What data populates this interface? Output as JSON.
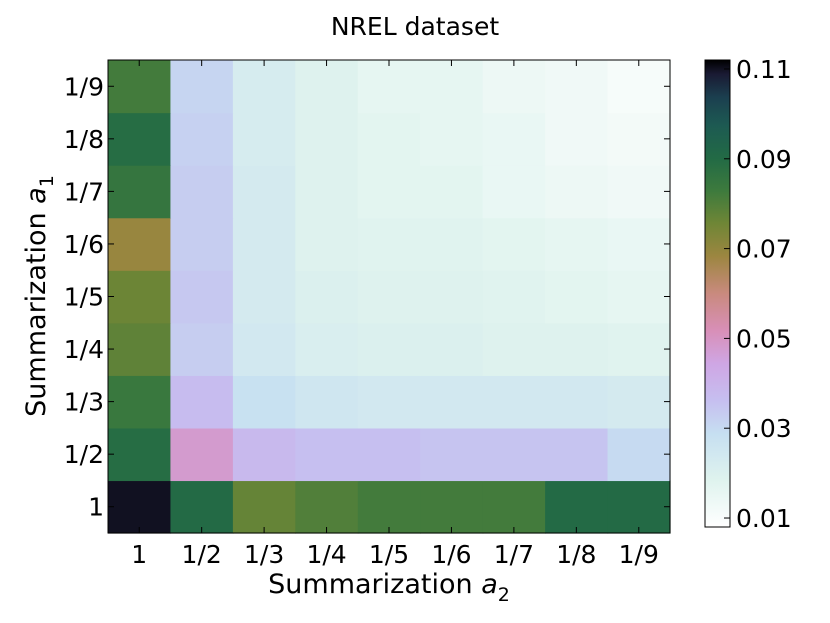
{
  "chart_data": {
    "type": "heatmap",
    "title": "NREL dataset",
    "xlabel": {
      "text": "Summarization ",
      "var": "a",
      "sub": "2"
    },
    "ylabel": {
      "text": "Summarization ",
      "var": "a",
      "sub": "1"
    },
    "x_categories": [
      "1",
      "1/2",
      "1/3",
      "1/4",
      "1/5",
      "1/6",
      "1/7",
      "1/8",
      "1/9"
    ],
    "y_categories": [
      "1",
      "1/2",
      "1/3",
      "1/4",
      "1/5",
      "1/6",
      "1/7",
      "1/8",
      "1/9"
    ],
    "values": [
      [
        0.11,
        0.09,
        0.077,
        0.08,
        0.082,
        0.082,
        0.082,
        0.09,
        0.09
      ],
      [
        0.089,
        0.048,
        0.038,
        0.036,
        0.036,
        0.035,
        0.035,
        0.035,
        0.03
      ],
      [
        0.084,
        0.037,
        0.028,
        0.025,
        0.024,
        0.024,
        0.024,
        0.024,
        0.023
      ],
      [
        0.078,
        0.033,
        0.024,
        0.021,
        0.02,
        0.02,
        0.019,
        0.019,
        0.018
      ],
      [
        0.076,
        0.034,
        0.023,
        0.02,
        0.019,
        0.019,
        0.018,
        0.017,
        0.016
      ],
      [
        0.069,
        0.033,
        0.023,
        0.019,
        0.018,
        0.018,
        0.017,
        0.016,
        0.015
      ],
      [
        0.085,
        0.033,
        0.023,
        0.019,
        0.017,
        0.017,
        0.015,
        0.014,
        0.013
      ],
      [
        0.089,
        0.032,
        0.022,
        0.019,
        0.017,
        0.016,
        0.015,
        0.013,
        0.012
      ],
      [
        0.082,
        0.031,
        0.022,
        0.019,
        0.016,
        0.016,
        0.014,
        0.013,
        0.011
      ]
    ],
    "colorbar": {
      "min": 0.008,
      "max": 0.112,
      "ticks": [
        0.11,
        0.09,
        0.07,
        0.05,
        0.03,
        0.01
      ],
      "tick_labels": [
        "0.11",
        "0.09",
        "0.07",
        "0.05",
        "0.03",
        "0.01"
      ],
      "colormap": "cubehelix_r",
      "colormap_stops": [
        {
          "v": 0.0,
          "color": "#ffffff"
        },
        {
          "v": 0.1,
          "color": "#dff3ee"
        },
        {
          "v": 0.2,
          "color": "#c6dff1"
        },
        {
          "v": 0.27,
          "color": "#c6bff0"
        },
        {
          "v": 0.35,
          "color": "#cfa6e4"
        },
        {
          "v": 0.42,
          "color": "#d88fb8"
        },
        {
          "v": 0.5,
          "color": "#c98a7e"
        },
        {
          "v": 0.58,
          "color": "#9c8640"
        },
        {
          "v": 0.65,
          "color": "#6f8636"
        },
        {
          "v": 0.72,
          "color": "#3d7a3d"
        },
        {
          "v": 0.79,
          "color": "#226a45"
        },
        {
          "v": 0.86,
          "color": "#1d5a52"
        },
        {
          "v": 0.92,
          "color": "#1b3f4f"
        },
        {
          "v": 0.97,
          "color": "#1a1a33"
        },
        {
          "v": 1.0,
          "color": "#000000"
        }
      ]
    }
  }
}
